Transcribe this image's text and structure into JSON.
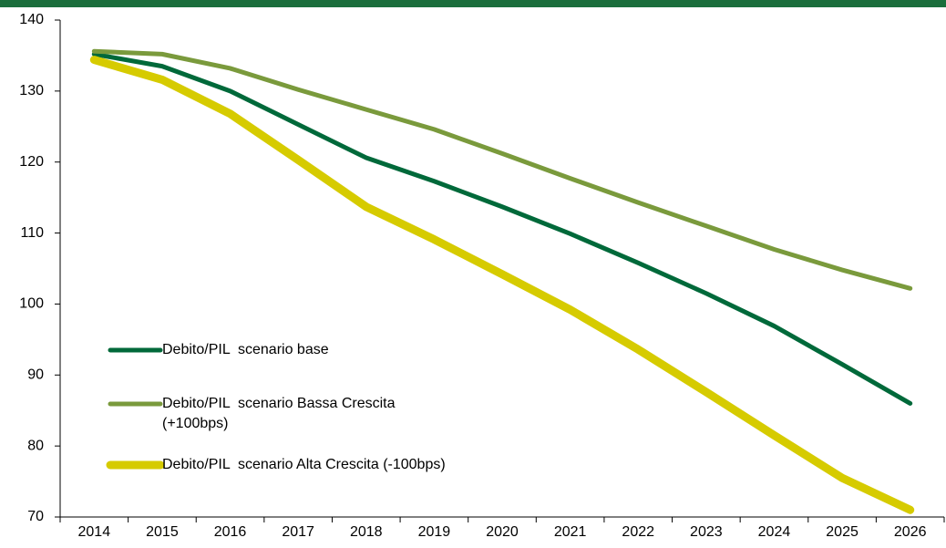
{
  "chart_data": {
    "type": "line",
    "categories": [
      "2014",
      "2015",
      "2016",
      "2017",
      "2018",
      "2019",
      "2020",
      "2021",
      "2022",
      "2023",
      "2024",
      "2025",
      "2026"
    ],
    "series": [
      {
        "name": "Debito/PIL  scenario base",
        "color": "#00693a",
        "width": 5,
        "values": [
          135.2,
          133.5,
          130.0,
          125.3,
          120.6,
          117.3,
          113.7,
          109.9,
          105.8,
          101.5,
          96.9,
          91.5,
          86.0
        ]
      },
      {
        "name": "Debito/PIL  scenario Bassa Crescita\n(+100bps)",
        "color": "#7a9a3c",
        "width": 5,
        "values": [
          135.6,
          135.2,
          133.2,
          130.2,
          127.4,
          124.6,
          121.2,
          117.7,
          114.3,
          111.0,
          107.7,
          104.8,
          102.2
        ]
      },
      {
        "name": "Debito/PIL  scenario Alta Crescita (-100bps)",
        "color": "#d6cb00",
        "width": 9,
        "values": [
          134.4,
          131.6,
          126.8,
          120.3,
          113.7,
          109.1,
          104.2,
          99.2,
          93.6,
          87.6,
          81.5,
          75.5,
          71.0
        ]
      }
    ],
    "ylim": [
      70,
      140
    ],
    "yticks": [
      70,
      80,
      90,
      100,
      110,
      120,
      130,
      140
    ],
    "grid": false
  }
}
